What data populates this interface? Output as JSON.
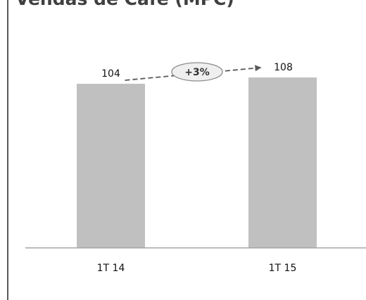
{
  "chart_data": {
    "type": "bar",
    "title": "Vendas de Café (MPC)",
    "categories": [
      "1T 14",
      "1T 15"
    ],
    "values": [
      104,
      108
    ],
    "ylim": [
      0,
      108
    ],
    "xlabel": "",
    "ylabel": "",
    "grid": false,
    "legend": "none",
    "annotation": {
      "text": "+3%",
      "from": "1T 14",
      "to": "1T 15"
    },
    "colors": {
      "bar": "#c0c0c0",
      "axis": "#a6a6a6",
      "arrow": "#595959",
      "badge_fill": "#efefef",
      "badge_stroke": "#8c8c8c"
    }
  }
}
